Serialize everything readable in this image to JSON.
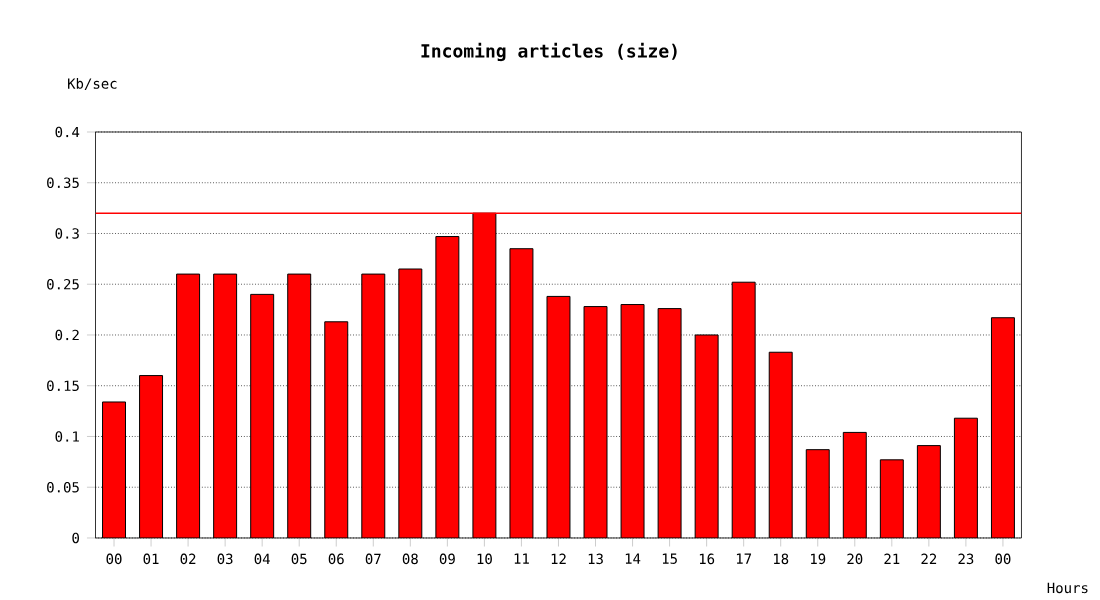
{
  "chart_data": {
    "type": "bar",
    "title": "Incoming articles (size)",
    "ylabel": "Kb/sec",
    "xlabel": "Hours",
    "categories": [
      "00",
      "01",
      "02",
      "03",
      "04",
      "05",
      "06",
      "07",
      "08",
      "09",
      "10",
      "11",
      "12",
      "13",
      "14",
      "15",
      "16",
      "17",
      "18",
      "19",
      "20",
      "21",
      "22",
      "23",
      "00"
    ],
    "values": [
      0.134,
      0.16,
      0.26,
      0.26,
      0.24,
      0.26,
      0.213,
      0.26,
      0.265,
      0.297,
      0.32,
      0.285,
      0.238,
      0.228,
      0.23,
      0.226,
      0.2,
      0.252,
      0.183,
      0.087,
      0.104,
      0.077,
      0.091,
      0.118,
      0.217
    ],
    "color": "#ff0000",
    "ylim": [
      0,
      0.4
    ],
    "yticks": [
      0,
      0.05,
      0.1,
      0.15,
      0.2,
      0.25,
      0.3,
      0.35,
      0.4
    ],
    "grid": "y",
    "ref_lines": [
      {
        "axis": "y",
        "value": 0.32,
        "color": "#ff0000"
      }
    ]
  }
}
